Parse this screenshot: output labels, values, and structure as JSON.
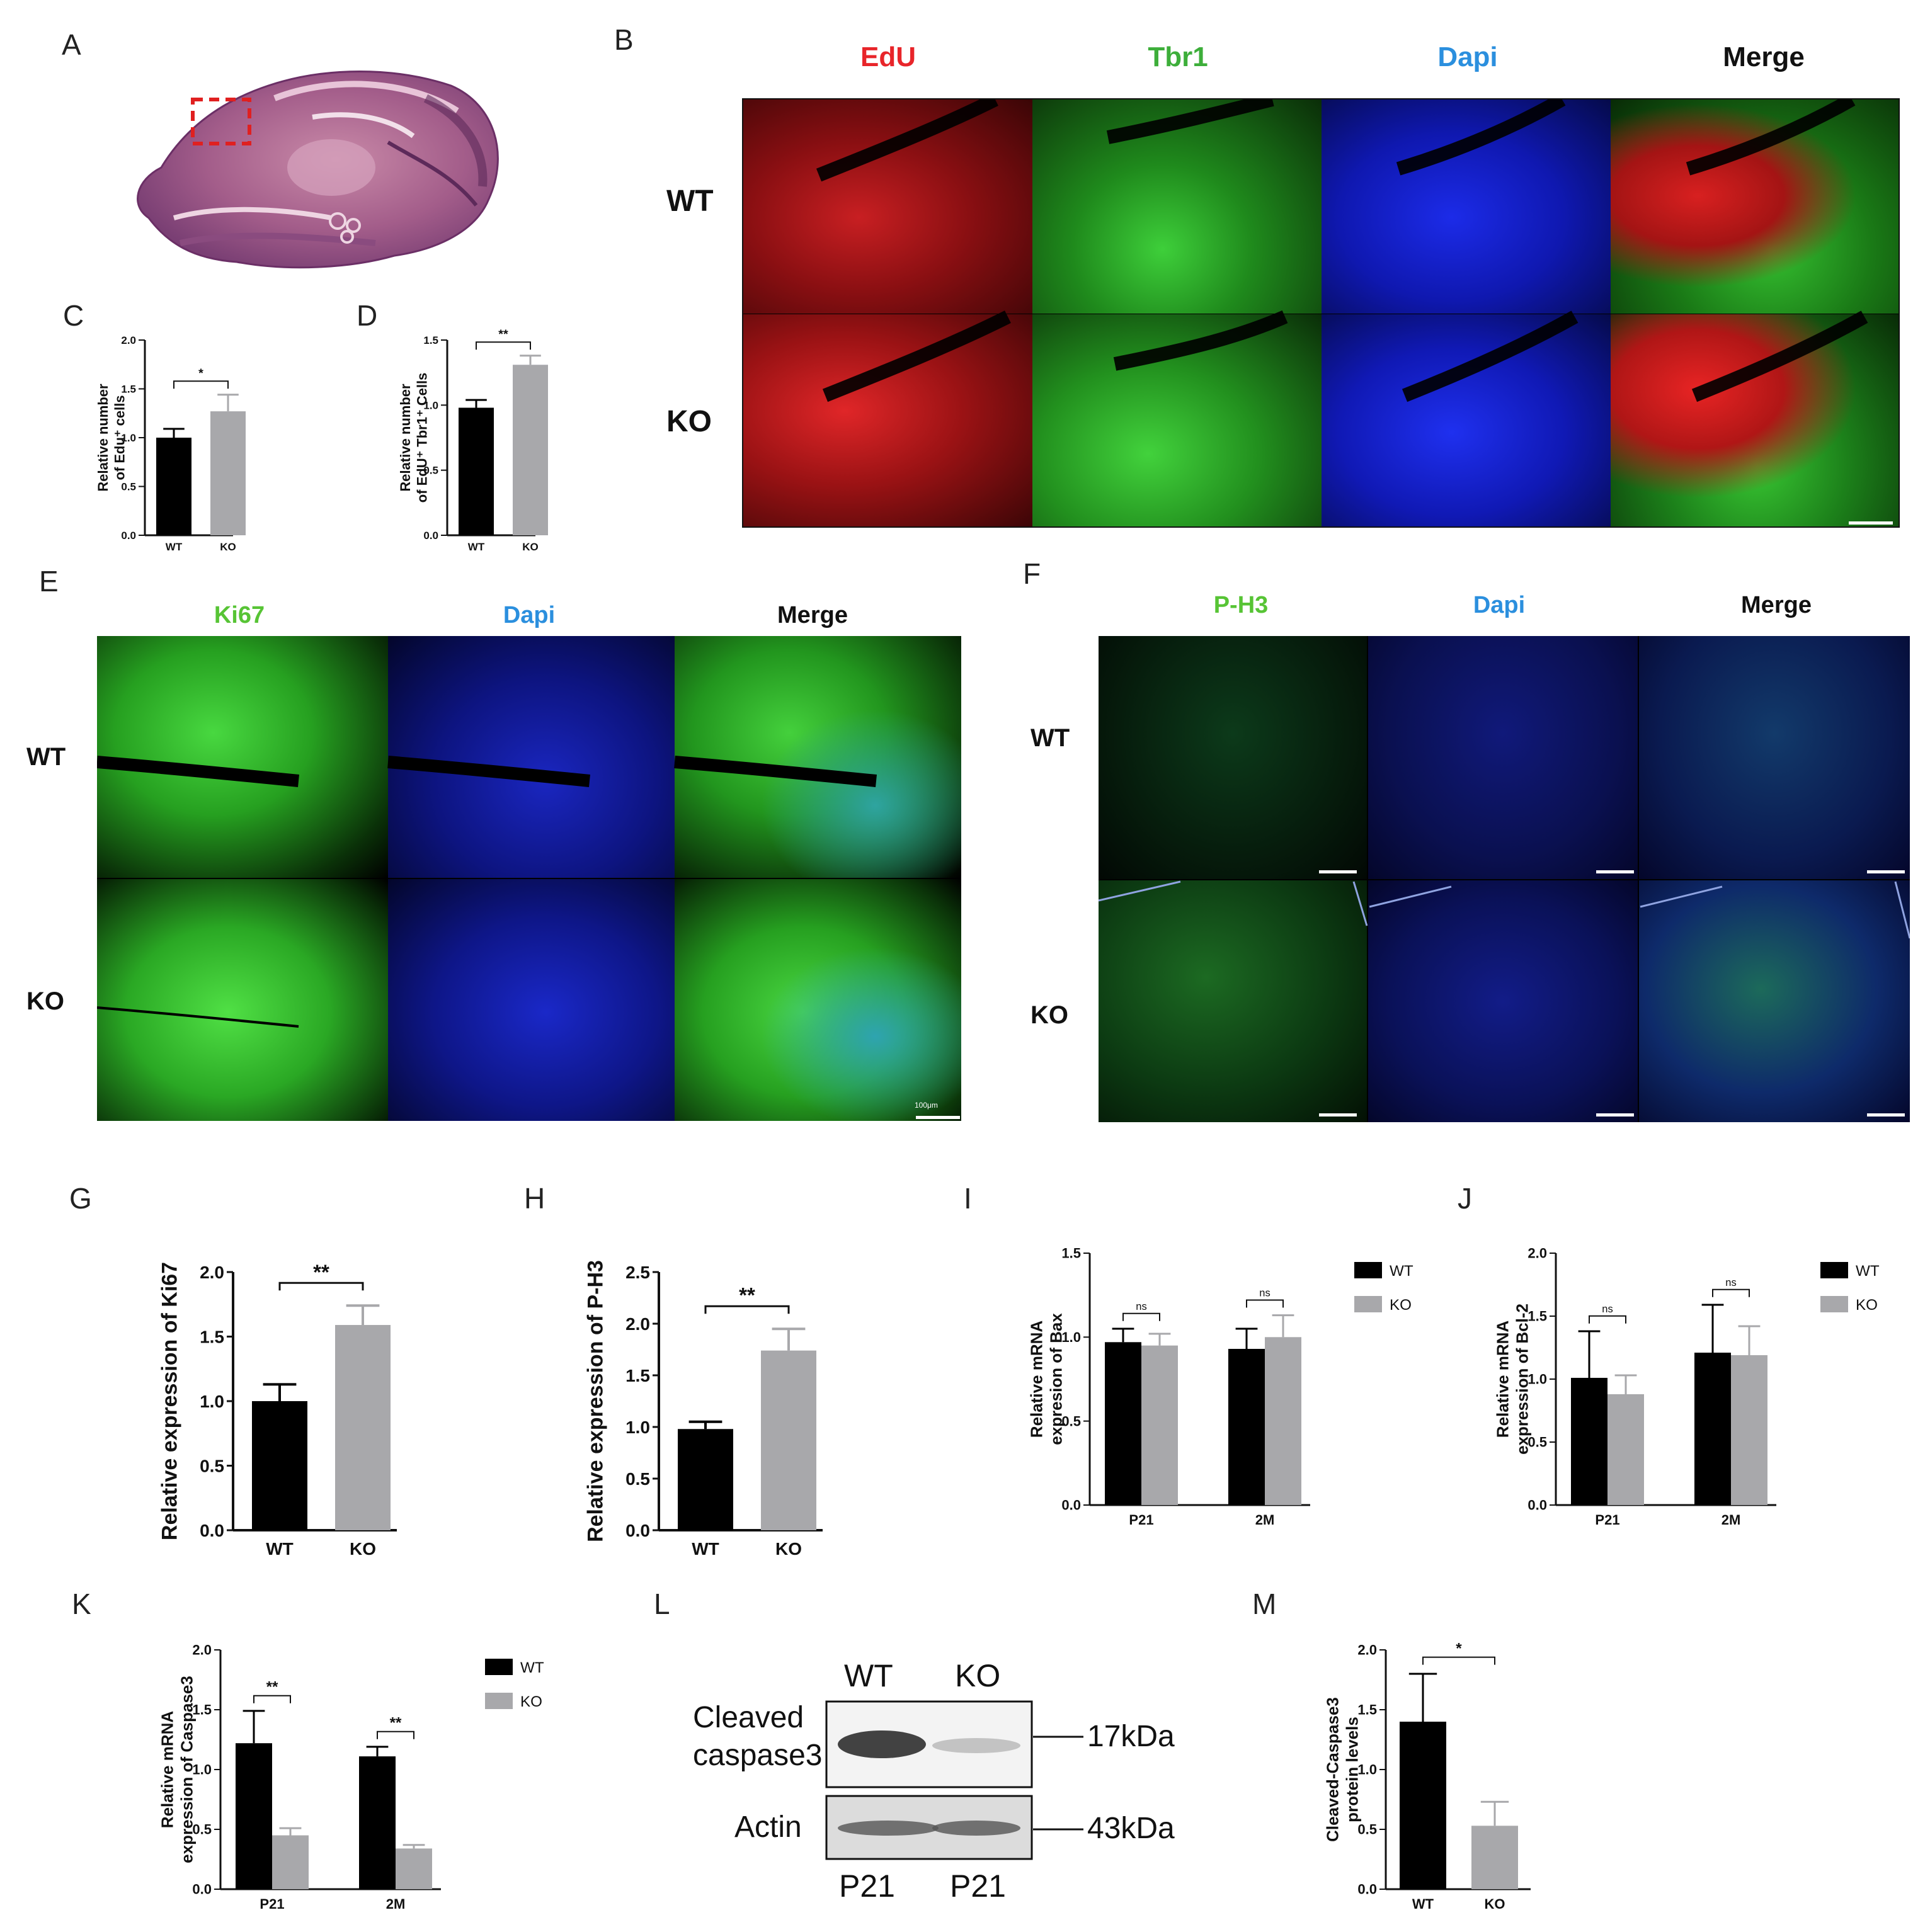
{
  "panels": {
    "A": "A",
    "B": "B",
    "C": "C",
    "D": "D",
    "E": "E",
    "F": "F",
    "G": "G",
    "H": "H",
    "I": "I",
    "J": "J",
    "K": "K",
    "L": "L",
    "M": "M"
  },
  "colors": {
    "wt_bar": "#000000",
    "ko_bar": "#a8a8ab",
    "edu_red": "#e8252a",
    "tbr1_green": "#3dae3a",
    "ki67_green": "#57c435",
    "dapi_blue": "#2b8fde",
    "dashed_box": "#e02020"
  },
  "panelB": {
    "columns": [
      "EdU",
      "Tbr1",
      "Dapi",
      "Merge"
    ],
    "rows": [
      "WT",
      "KO"
    ]
  },
  "panelE": {
    "columns": [
      "Ki67",
      "Dapi",
      "Merge"
    ],
    "rows": [
      "WT",
      "KO"
    ],
    "scalebar": "100μm"
  },
  "panelF": {
    "columns": [
      "P-H3",
      "Dapi",
      "Merge"
    ],
    "rows": [
      "WT",
      "KO"
    ]
  },
  "panelL": {
    "lanes": [
      "WT",
      "KO"
    ],
    "bands": [
      "Cleaved caspase3",
      "Actin"
    ],
    "band_line1": "Cleaved",
    "band_line2": "caspase3",
    "sizes": [
      "17kDa",
      "43kDa"
    ],
    "lane_bottom": [
      "P21",
      "P21"
    ],
    "band_intensity": {
      "cleaved": [
        1.0,
        0.45
      ],
      "actin": [
        1.0,
        1.0
      ]
    }
  },
  "chart_data": [
    {
      "id": "C",
      "type": "bar",
      "categories": [
        "WT",
        "KO"
      ],
      "values": [
        1.0,
        1.27
      ],
      "errors": [
        0.09,
        0.17
      ],
      "ylabel_line1": "Relative number",
      "ylabel_line2": "of Edu⁺ cells",
      "ylim": [
        0,
        2.0
      ],
      "yticks": [
        "0.0",
        "0.5",
        "1.0",
        "1.5",
        "2.0"
      ],
      "significance": [
        {
          "pair": [
            0,
            1
          ],
          "label": "*"
        }
      ]
    },
    {
      "id": "D",
      "type": "bar",
      "categories": [
        "WT",
        "KO"
      ],
      "values": [
        0.98,
        1.31
      ],
      "errors": [
        0.06,
        0.07
      ],
      "ylabel_line1": "Relative number",
      "ylabel_line2": "of EdU⁺ Tbr1⁺ Cells",
      "ylim": [
        0,
        1.5
      ],
      "yticks": [
        "0.0",
        "0.5",
        "1.0",
        "1.5"
      ],
      "significance": [
        {
          "pair": [
            0,
            1
          ],
          "label": "**"
        }
      ]
    },
    {
      "id": "G",
      "type": "bar",
      "categories": [
        "WT",
        "KO"
      ],
      "values": [
        1.0,
        1.59
      ],
      "errors": [
        0.13,
        0.15
      ],
      "ylabel_line1": "Relative expression of Ki67",
      "ylabel_line2": "",
      "ylim": [
        0,
        2.0
      ],
      "yticks": [
        "0.0",
        "0.5",
        "1.0",
        "1.5",
        "2.0"
      ],
      "significance": [
        {
          "pair": [
            0,
            1
          ],
          "label": "**"
        }
      ]
    },
    {
      "id": "H",
      "type": "bar",
      "categories": [
        "WT",
        "KO"
      ],
      "values": [
        0.98,
        1.74
      ],
      "errors": [
        0.07,
        0.21
      ],
      "ylabel_line1": "Relative expression of P-H3",
      "ylabel_line2": "",
      "ylim": [
        0,
        2.5
      ],
      "yticks": [
        "0.0",
        "0.5",
        "1.0",
        "1.5",
        "2.0",
        "2.5"
      ],
      "significance": [
        {
          "pair": [
            0,
            1
          ],
          "label": "**"
        }
      ]
    },
    {
      "id": "I",
      "type": "bar",
      "categories": [
        "P21",
        "2M"
      ],
      "series": [
        {
          "name": "WT",
          "values": [
            0.97,
            0.93
          ],
          "errors": [
            0.08,
            0.12
          ]
        },
        {
          "name": "KO",
          "values": [
            0.95,
            1.0
          ],
          "errors": [
            0.07,
            0.13
          ]
        }
      ],
      "ylabel_line1": "Relative mRNA",
      "ylabel_line2": "expresion of Bax",
      "ylim": [
        0,
        1.5
      ],
      "yticks": [
        "0.0",
        "0.5",
        "1.0",
        "1.5"
      ],
      "significance": [
        {
          "group": 0,
          "label": "ns"
        },
        {
          "group": 1,
          "label": "ns"
        }
      ],
      "legend": "right"
    },
    {
      "id": "J",
      "type": "bar",
      "categories": [
        "P21",
        "2M"
      ],
      "series": [
        {
          "name": "WT",
          "values": [
            1.01,
            1.21
          ],
          "errors": [
            0.37,
            0.38
          ]
        },
        {
          "name": "KO",
          "values": [
            0.88,
            1.19
          ],
          "errors": [
            0.15,
            0.23
          ]
        }
      ],
      "ylabel_line1": "Relative mRNA",
      "ylabel_line2": "expression of Bcl-2",
      "ylim": [
        0,
        2.0
      ],
      "yticks": [
        "0.0",
        "0.5",
        "1.0",
        "1.5",
        "2.0"
      ],
      "significance": [
        {
          "group": 0,
          "label": "ns"
        },
        {
          "group": 1,
          "label": "ns"
        }
      ],
      "legend": "right"
    },
    {
      "id": "K",
      "type": "bar",
      "categories": [
        "P21",
        "2M"
      ],
      "series": [
        {
          "name": "WT",
          "values": [
            1.22,
            1.11
          ],
          "errors": [
            0.27,
            0.08
          ]
        },
        {
          "name": "KO",
          "values": [
            0.45,
            0.34
          ],
          "errors": [
            0.06,
            0.03
          ]
        }
      ],
      "ylabel_line1": "Relative mRNA",
      "ylabel_line2": "expression of Caspase3",
      "ylim": [
        0,
        2.0
      ],
      "yticks": [
        "0.0",
        "0.5",
        "1.0",
        "1.5",
        "2.0"
      ],
      "significance": [
        {
          "group": 0,
          "label": "**"
        },
        {
          "group": 1,
          "label": "**"
        }
      ],
      "legend": "right"
    },
    {
      "id": "M",
      "type": "bar",
      "categories": [
        "WT",
        "KO"
      ],
      "values": [
        1.4,
        0.53
      ],
      "errors": [
        0.4,
        0.2
      ],
      "ylabel_line1": "Cleaved-Caspase3",
      "ylabel_line2": "protein levels",
      "ylim": [
        0,
        2.0
      ],
      "yticks": [
        "0.0",
        "0.5",
        "1.0",
        "1.5",
        "2.0"
      ],
      "significance": [
        {
          "pair": [
            0,
            1
          ],
          "label": "*"
        }
      ]
    }
  ]
}
